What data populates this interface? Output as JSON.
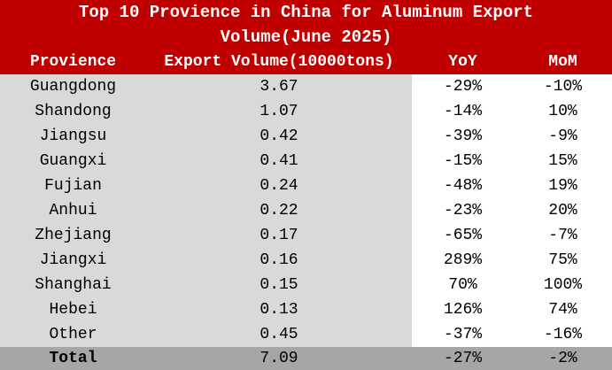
{
  "header": {
    "title": "Top 10 Provience in China for Aluminum Export Volume(June 2025)"
  },
  "table": {
    "columns": [
      "Provience",
      "Export Volume(10000tons)",
      "YoY",
      "MoM"
    ],
    "rows": [
      [
        "Guangdong",
        "3.67",
        "-29%",
        "-10%"
      ],
      [
        "Shandong",
        "1.07",
        "-14%",
        "10%"
      ],
      [
        "Jiangsu",
        "0.42",
        "-39%",
        "-9%"
      ],
      [
        "Guangxi",
        "0.41",
        "-15%",
        "15%"
      ],
      [
        "Fujian",
        "0.24",
        "-48%",
        "19%"
      ],
      [
        "Anhui",
        "0.22",
        "-23%",
        "20%"
      ],
      [
        "Zhejiang",
        "0.17",
        "-65%",
        "-7%"
      ],
      [
        "Jiangxi",
        "0.16",
        "289%",
        "75%"
      ],
      [
        "Shanghai",
        "0.15",
        "70%",
        "100%"
      ],
      [
        "Hebei",
        "0.13",
        "126%",
        "74%"
      ],
      [
        "Other",
        "0.45",
        "-37%",
        "-16%"
      ]
    ],
    "total": [
      "Total",
      "7.09",
      "-27%",
      "-2%"
    ]
  }
}
